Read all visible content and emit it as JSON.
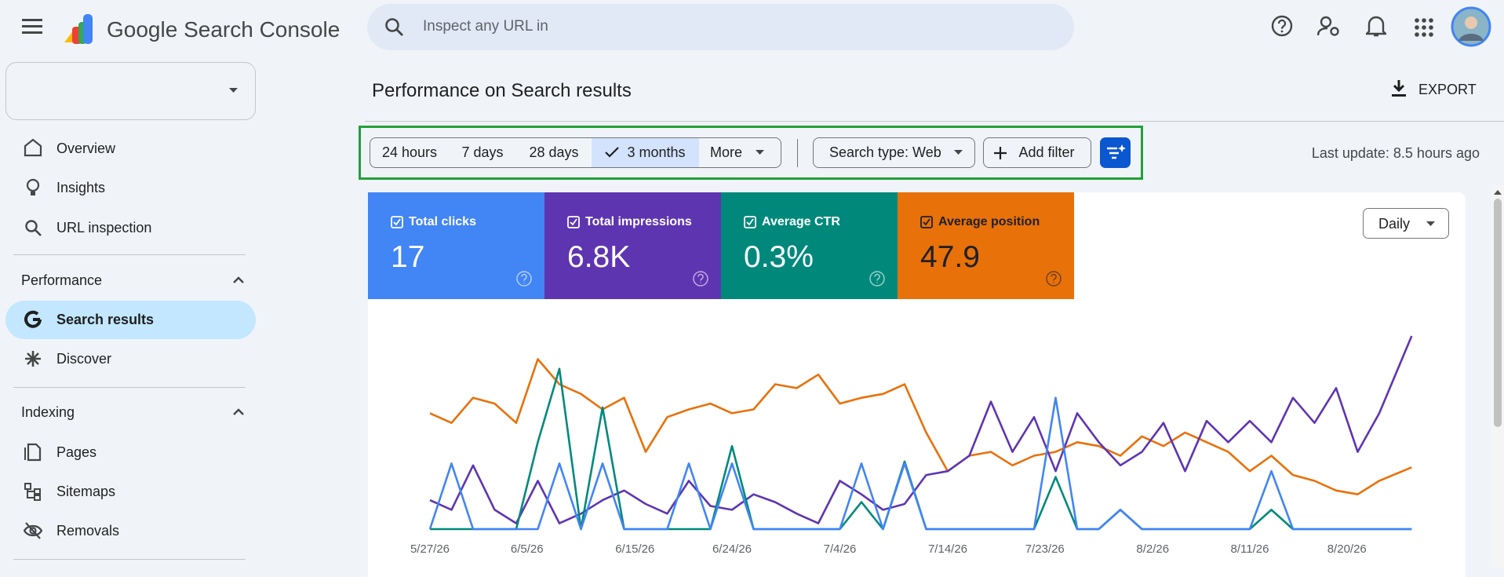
{
  "header": {
    "product": "Google Search Console",
    "search_placeholder": "Inspect any URL in"
  },
  "sidebar": {
    "items": [
      "Overview",
      "Insights",
      "URL inspection"
    ],
    "sections": [
      {
        "title": "Performance",
        "items": [
          "Search results",
          "Discover"
        ]
      },
      {
        "title": "Indexing",
        "items": [
          "Pages",
          "Sitemaps",
          "Removals"
        ]
      }
    ]
  },
  "main": {
    "title": "Performance on Search results",
    "export": "EXPORT",
    "date_ranges": [
      "24 hours",
      "7 days",
      "28 days",
      "3 months",
      "More"
    ],
    "search_type": "Search type: Web",
    "add_filter": "Add filter",
    "last_update": "Last update: 8.5 hours ago",
    "granularity": "Daily"
  },
  "chart_data": {
    "type": "line",
    "x": [
      0,
      2,
      4,
      6,
      8,
      10,
      12,
      14,
      16,
      18,
      20,
      22,
      24,
      26,
      28,
      30,
      32,
      34,
      36,
      38,
      40,
      42,
      44,
      46,
      48,
      50,
      52,
      54,
      56,
      58,
      60,
      62,
      64,
      66,
      68,
      70,
      72,
      74,
      76,
      78,
      80,
      82,
      84,
      86,
      88,
      91
    ],
    "xlim": [
      0,
      92
    ],
    "ylim": [
      0,
      100
    ],
    "xticks": [
      {
        "value": 0,
        "label": "5/27/26"
      },
      {
        "value": 9,
        "label": "6/5/26"
      },
      {
        "value": 19,
        "label": "6/15/26"
      },
      {
        "value": 28,
        "label": "6/24/26"
      },
      {
        "value": 38,
        "label": "7/4/26"
      },
      {
        "value": 48,
        "label": "7/14/26"
      },
      {
        "value": 57,
        "label": "7/23/26"
      },
      {
        "value": 67,
        "label": "8/2/26"
      },
      {
        "value": 76,
        "label": "8/11/26"
      },
      {
        "value": 85,
        "label": "8/20/26"
      }
    ],
    "series": [
      {
        "name": "Total clicks",
        "total": "17",
        "color": "#4285f4",
        "text_color": "#ffffff",
        "values": [
          0,
          34,
          0,
          0,
          0,
          0,
          34,
          0,
          34,
          0,
          0,
          0,
          34,
          0,
          34,
          0,
          0,
          0,
          0,
          0,
          34,
          0,
          34,
          0,
          0,
          0,
          0,
          0,
          0,
          68,
          0,
          0,
          10,
          0,
          0,
          0,
          0,
          0,
          0,
          30,
          0,
          0,
          0,
          0,
          0,
          0
        ]
      },
      {
        "name": "Total impressions",
        "total": "6.8K",
        "color": "#5e35b1",
        "text_color": "#ffffff",
        "values": [
          15,
          10,
          33,
          10,
          3,
          25,
          3,
          8,
          15,
          20,
          13,
          8,
          25,
          12,
          10,
          18,
          14,
          8,
          3,
          25,
          18,
          10,
          13,
          28,
          30,
          38,
          66,
          40,
          58,
          30,
          60,
          45,
          33,
          40,
          55,
          30,
          56,
          45,
          56,
          45,
          68,
          55,
          73,
          40,
          60,
          100
        ]
      },
      {
        "name": "Average CTR",
        "total": "0.3%",
        "color": "#00897b",
        "text_color": "#ffffff",
        "values": [
          0,
          0,
          0,
          0,
          0,
          45,
          83,
          0,
          63,
          0,
          0,
          0,
          0,
          0,
          43,
          0,
          0,
          0,
          0,
          0,
          14,
          0,
          35,
          0,
          0,
          0,
          0,
          0,
          0,
          27,
          0,
          0,
          10,
          0,
          0,
          0,
          0,
          0,
          0,
          10,
          0,
          0,
          0,
          0,
          0,
          0
        ]
      },
      {
        "name": "Average position",
        "total": "47.9",
        "color": "#e8710a",
        "text_color": "#202124",
        "values": [
          60,
          55,
          68,
          65,
          55,
          88,
          75,
          70,
          62,
          68,
          40,
          58,
          62,
          65,
          60,
          62,
          75,
          73,
          80,
          65,
          68,
          70,
          75,
          50,
          30,
          38,
          40,
          33,
          38,
          40,
          45,
          43,
          38,
          48,
          43,
          50,
          45,
          40,
          30,
          38,
          28,
          25,
          20,
          18,
          25,
          32
        ]
      }
    ],
    "draw_order": [
      3,
      1,
      2,
      0
    ]
  }
}
